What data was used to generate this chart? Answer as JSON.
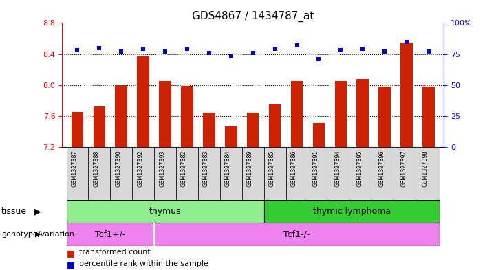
{
  "title": "GDS4867 / 1434787_at",
  "samples": [
    "GSM1327387",
    "GSM1327388",
    "GSM1327390",
    "GSM1327392",
    "GSM1327393",
    "GSM1327382",
    "GSM1327383",
    "GSM1327384",
    "GSM1327389",
    "GSM1327385",
    "GSM1327386",
    "GSM1327391",
    "GSM1327394",
    "GSM1327395",
    "GSM1327396",
    "GSM1327397",
    "GSM1327398"
  ],
  "red_values": [
    7.65,
    7.72,
    8.0,
    8.37,
    8.05,
    7.99,
    7.64,
    7.47,
    7.64,
    7.75,
    8.05,
    7.51,
    8.05,
    8.08,
    7.98,
    8.55,
    7.98
  ],
  "blue_values": [
    78,
    80,
    77,
    79,
    77,
    79,
    76,
    73,
    76,
    79,
    82,
    71,
    78,
    79,
    77,
    85,
    77
  ],
  "ylim_left": [
    7.2,
    8.8
  ],
  "ylim_right": [
    0,
    100
  ],
  "yticks_left": [
    7.2,
    7.6,
    8.0,
    8.4,
    8.8
  ],
  "yticks_right": [
    0,
    25,
    50,
    75,
    100
  ],
  "grid_values": [
    7.6,
    8.0,
    8.4
  ],
  "thymus_count": 9,
  "tcfplus_count": 4,
  "bar_color": "#CC2200",
  "dot_color": "#0000CC",
  "thymus_color": "#90EE90",
  "lymphoma_color": "#33CC33",
  "genotype_color": "#EE82EE",
  "sample_bg_color": "#D8D8D8",
  "legend_red": "transformed count",
  "legend_blue": "percentile rank within the sample",
  "tissue_label": "tissue",
  "genotype_label": "genotype/variation"
}
